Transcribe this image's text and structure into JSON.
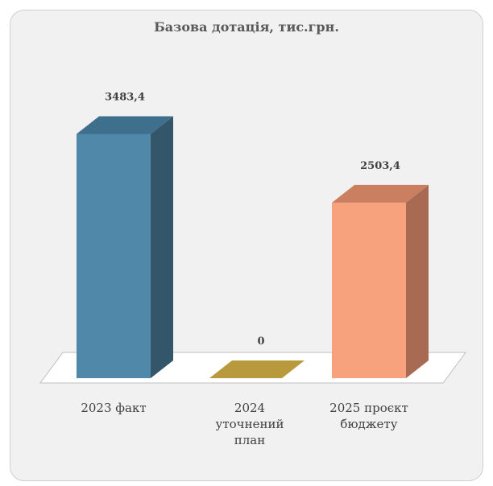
{
  "chart_data": {
    "type": "bar",
    "title": "Базова дотація, тис.грн.",
    "categories": [
      [
        "2023 факт"
      ],
      [
        "2024",
        "уточнений",
        "план"
      ],
      [
        "2025 проєкт",
        "бюджету"
      ]
    ],
    "values": [
      3483.4,
      0,
      2503.4
    ],
    "value_labels": [
      "3483,4",
      "0",
      "2503,4"
    ],
    "colors": {
      "front": [
        "#5088a9",
        "#b89a3c",
        "#f7a27d"
      ],
      "side": [
        "#34566b",
        "#8a7330",
        "#a86a52"
      ],
      "top": [
        "#3e6f8c",
        "#a08530",
        "#c97f60"
      ]
    },
    "ylim": [
      0,
      3500
    ],
    "style": "3d-column",
    "grid": false,
    "legend": "none"
  }
}
